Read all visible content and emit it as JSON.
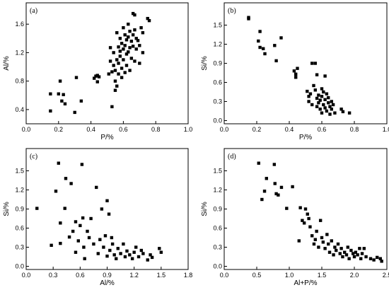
{
  "chart_data": [
    {
      "type": "scatter",
      "panel_label": "(a)",
      "xlabel": "P/%",
      "ylabel": "Al/%",
      "xlim": [
        0.0,
        1.0
      ],
      "ylim": [
        0.2,
        1.9
      ],
      "xticks": [
        0.0,
        0.2,
        0.4,
        0.6,
        0.8,
        1.0
      ],
      "yticks": [
        0.4,
        0.8,
        1.2,
        1.6
      ],
      "xtick_labels": [
        "0.0",
        "0.2",
        "0.4",
        "0.6",
        "0.8",
        "1.0"
      ],
      "ytick_labels": [
        "0.4",
        "0.8",
        "1.2",
        "1.6"
      ],
      "grid": false,
      "marker": "square",
      "series": [
        {
          "points": [
            [
              0.15,
              0.62
            ],
            [
              0.15,
              0.38
            ],
            [
              0.2,
              0.62
            ],
            [
              0.21,
              0.8
            ],
            [
              0.22,
              0.52
            ],
            [
              0.23,
              0.61
            ],
            [
              0.24,
              0.48
            ],
            [
              0.31,
              0.85
            ],
            [
              0.3,
              0.36
            ],
            [
              0.34,
              0.52
            ],
            [
              0.42,
              0.84
            ],
            [
              0.43,
              0.87
            ],
            [
              0.44,
              0.88
            ],
            [
              0.44,
              0.79
            ],
            [
              0.45,
              0.86
            ],
            [
              0.51,
              0.9
            ],
            [
              0.52,
              1.08
            ],
            [
              0.52,
              1.27
            ],
            [
              0.53,
              0.44
            ],
            [
              0.53,
              0.93
            ],
            [
              0.54,
              1.2
            ],
            [
              0.54,
              1.02
            ],
            [
              0.55,
              0.95
            ],
            [
              0.55,
              0.67
            ],
            [
              0.55,
              0.8
            ],
            [
              0.56,
              1.48
            ],
            [
              0.56,
              1.1
            ],
            [
              0.56,
              0.73
            ],
            [
              0.57,
              1.28
            ],
            [
              0.57,
              1.05
            ],
            [
              0.57,
              0.9
            ],
            [
              0.58,
              1.4
            ],
            [
              0.58,
              1.22
            ],
            [
              0.58,
              1.15
            ],
            [
              0.59,
              1.33
            ],
            [
              0.59,
              0.98
            ],
            [
              0.59,
              0.85
            ],
            [
              0.6,
              1.55
            ],
            [
              0.6,
              1.25
            ],
            [
              0.6,
              1.1
            ],
            [
              0.61,
              1.45
            ],
            [
              0.61,
              1.3
            ],
            [
              0.61,
              0.92
            ],
            [
              0.62,
              1.38
            ],
            [
              0.62,
              1.18
            ],
            [
              0.62,
              1.02
            ],
            [
              0.63,
              1.6
            ],
            [
              0.63,
              1.42
            ],
            [
              0.63,
              1.21
            ],
            [
              0.64,
              1.5
            ],
            [
              0.64,
              1.27
            ],
            [
              0.64,
              0.95
            ],
            [
              0.65,
              1.36
            ],
            [
              0.65,
              1.12
            ],
            [
              0.66,
              1.75
            ],
            [
              0.66,
              1.45
            ],
            [
              0.66,
              1.29
            ],
            [
              0.67,
              1.73
            ],
            [
              0.67,
              1.52
            ],
            [
              0.67,
              1.08
            ],
            [
              0.68,
              1.4
            ],
            [
              0.68,
              1.25
            ],
            [
              0.69,
              1.37
            ],
            [
              0.7,
              1.3
            ],
            [
              0.7,
              1.05
            ],
            [
              0.71,
              1.55
            ],
            [
              0.72,
              1.48
            ],
            [
              0.72,
              1.2
            ],
            [
              0.75,
              1.68
            ],
            [
              0.76,
              1.65
            ]
          ]
        }
      ]
    },
    {
      "type": "scatter",
      "panel_label": "(b)",
      "xlabel": "P/%",
      "ylabel": "Si/%",
      "xlim": [
        0.0,
        1.0
      ],
      "ylim": [
        -0.05,
        1.85
      ],
      "xticks": [
        0.0,
        0.2,
        0.4,
        0.6,
        0.8,
        1.0
      ],
      "yticks": [
        0.0,
        0.3,
        0.6,
        0.9,
        1.2,
        1.5
      ],
      "xtick_labels": [
        "0.0",
        "0.2",
        "0.4",
        "0.6",
        "0.8",
        "1.0"
      ],
      "ytick_labels": [
        "0.0",
        "0.3",
        "0.6",
        "0.9",
        "1.2",
        "1.5"
      ],
      "grid": false,
      "marker": "square",
      "series": [
        {
          "points": [
            [
              0.15,
              1.62
            ],
            [
              0.15,
              1.6
            ],
            [
              0.21,
              1.25
            ],
            [
              0.22,
              1.4
            ],
            [
              0.22,
              1.15
            ],
            [
              0.24,
              1.13
            ],
            [
              0.25,
              1.05
            ],
            [
              0.31,
              1.18
            ],
            [
              0.32,
              0.94
            ],
            [
              0.35,
              1.3
            ],
            [
              0.43,
              0.78
            ],
            [
              0.44,
              0.73
            ],
            [
              0.45,
              0.82
            ],
            [
              0.44,
              0.68
            ],
            [
              0.51,
              0.46
            ],
            [
              0.52,
              0.38
            ],
            [
              0.52,
              0.3
            ],
            [
              0.53,
              0.42
            ],
            [
              0.54,
              0.9
            ],
            [
              0.54,
              0.25
            ],
            [
              0.55,
              0.55
            ],
            [
              0.56,
              0.9
            ],
            [
              0.56,
              0.48
            ],
            [
              0.57,
              0.35
            ],
            [
              0.57,
              0.72
            ],
            [
              0.57,
              0.22
            ],
            [
              0.58,
              0.4
            ],
            [
              0.58,
              0.28
            ],
            [
              0.59,
              0.18
            ],
            [
              0.59,
              0.32
            ],
            [
              0.6,
              0.5
            ],
            [
              0.6,
              0.38
            ],
            [
              0.6,
              0.12
            ],
            [
              0.61,
              0.45
            ],
            [
              0.61,
              0.25
            ],
            [
              0.62,
              0.7
            ],
            [
              0.62,
              0.33
            ],
            [
              0.62,
              0.2
            ],
            [
              0.63,
              0.42
            ],
            [
              0.63,
              0.15
            ],
            [
              0.64,
              0.36
            ],
            [
              0.64,
              0.28
            ],
            [
              0.65,
              0.22
            ],
            [
              0.65,
              0.1
            ],
            [
              0.66,
              0.3
            ],
            [
              0.66,
              0.18
            ],
            [
              0.67,
              0.25
            ],
            [
              0.68,
              0.12
            ],
            [
              0.72,
              0.18
            ],
            [
              0.73,
              0.14
            ],
            [
              0.77,
              0.12
            ]
          ]
        }
      ]
    },
    {
      "type": "scatter",
      "panel_label": "(c)",
      "xlabel": "Al/%",
      "ylabel": "Si/%",
      "xlim": [
        0.0,
        1.8
      ],
      "ylim": [
        -0.05,
        1.85
      ],
      "xticks": [
        0.0,
        0.3,
        0.6,
        0.9,
        1.2,
        1.5,
        1.8
      ],
      "yticks": [
        0.0,
        0.3,
        0.6,
        0.9,
        1.2,
        1.5
      ],
      "xtick_labels": [
        "0.0",
        "0.3",
        "0.6",
        "0.9",
        "1.2",
        "1.5",
        "1.8"
      ],
      "ytick_labels": [
        "0.0",
        "0.3",
        "0.6",
        "0.9",
        "1.2",
        "1.5"
      ],
      "grid": false,
      "marker": "square",
      "series": [
        {
          "points": [
            [
              0.12,
              0.91
            ],
            [
              0.28,
              0.33
            ],
            [
              0.33,
              1.18
            ],
            [
              0.36,
              1.62
            ],
            [
              0.38,
              0.36
            ],
            [
              0.38,
              0.68
            ],
            [
              0.43,
              0.91
            ],
            [
              0.44,
              1.38
            ],
            [
              0.48,
              0.46
            ],
            [
              0.5,
              1.3
            ],
            [
              0.52,
              0.55
            ],
            [
              0.55,
              0.22
            ],
            [
              0.55,
              0.7
            ],
            [
              0.58,
              0.4
            ],
            [
              0.6,
              0.64
            ],
            [
              0.62,
              1.6
            ],
            [
              0.63,
              0.76
            ],
            [
              0.64,
              0.3
            ],
            [
              0.65,
              0.12
            ],
            [
              0.68,
              0.55
            ],
            [
              0.7,
              0.45
            ],
            [
              0.72,
              0.75
            ],
            [
              0.75,
              0.35
            ],
            [
              0.78,
              1.24
            ],
            [
              0.8,
              0.2
            ],
            [
              0.82,
              0.42
            ],
            [
              0.84,
              0.9
            ],
            [
              0.86,
              0.3
            ],
            [
              0.88,
              0.48
            ],
            [
              0.9,
              0.16
            ],
            [
              0.9,
              1.03
            ],
            [
              0.92,
              0.82
            ],
            [
              0.93,
              0.25
            ],
            [
              0.95,
              0.45
            ],
            [
              0.96,
              0.35
            ],
            [
              0.98,
              0.18
            ],
            [
              1.0,
              0.12
            ],
            [
              1.02,
              0.28
            ],
            [
              1.05,
              0.2
            ],
            [
              1.08,
              0.35
            ],
            [
              1.1,
              0.15
            ],
            [
              1.12,
              0.24
            ],
            [
              1.15,
              0.18
            ],
            [
              1.18,
              0.12
            ],
            [
              1.2,
              0.22
            ],
            [
              1.22,
              0.3
            ],
            [
              1.25,
              0.15
            ],
            [
              1.28,
              0.25
            ],
            [
              1.3,
              0.2
            ],
            [
              1.35,
              0.1
            ],
            [
              1.38,
              0.18
            ],
            [
              1.4,
              0.14
            ],
            [
              1.48,
              0.28
            ],
            [
              1.5,
              0.22
            ]
          ]
        }
      ]
    },
    {
      "type": "scatter",
      "panel_label": "(d)",
      "xlabel": "Al+P/%",
      "ylabel": "Si/%",
      "xlim": [
        0.0,
        2.5
      ],
      "ylim": [
        -0.05,
        1.85
      ],
      "xticks": [
        0.0,
        0.5,
        1.0,
        1.5,
        2.0,
        2.5
      ],
      "yticks": [
        0.0,
        0.3,
        0.6,
        0.9,
        1.2,
        1.5
      ],
      "xtick_labels": [
        "0.0",
        "0.5",
        "1.0",
        "1.5",
        "2.0",
        "2.5"
      ],
      "ytick_labels": [
        "0.0",
        "0.3",
        "0.6",
        "0.9",
        "1.2",
        "1.5"
      ],
      "grid": false,
      "marker": "square",
      "series": [
        {
          "points": [
            [
              0.53,
              1.62
            ],
            [
              0.58,
              1.05
            ],
            [
              0.62,
              1.18
            ],
            [
              0.65,
              1.38
            ],
            [
              0.77,
              1.6
            ],
            [
              0.78,
              1.3
            ],
            [
              0.8,
              1.14
            ],
            [
              0.83,
              1.12
            ],
            [
              0.88,
              1.24
            ],
            [
              0.96,
              0.91
            ],
            [
              1.05,
              1.25
            ],
            [
              1.15,
              0.4
            ],
            [
              1.17,
              0.92
            ],
            [
              1.2,
              0.72
            ],
            [
              1.23,
              0.68
            ],
            [
              1.25,
              0.9
            ],
            [
              1.28,
              0.82
            ],
            [
              1.3,
              0.75
            ],
            [
              1.32,
              0.62
            ],
            [
              1.35,
              0.48
            ],
            [
              1.38,
              0.35
            ],
            [
              1.4,
              0.42
            ],
            [
              1.42,
              0.55
            ],
            [
              1.45,
              0.3
            ],
            [
              1.48,
              0.72
            ],
            [
              1.5,
              0.45
            ],
            [
              1.52,
              0.38
            ],
            [
              1.55,
              0.28
            ],
            [
              1.58,
              0.5
            ],
            [
              1.6,
              0.35
            ],
            [
              1.62,
              0.22
            ],
            [
              1.65,
              0.4
            ],
            [
              1.68,
              0.18
            ],
            [
              1.7,
              0.3
            ],
            [
              1.72,
              0.25
            ],
            [
              1.75,
              0.35
            ],
            [
              1.78,
              0.2
            ],
            [
              1.8,
              0.28
            ],
            [
              1.82,
              0.15
            ],
            [
              1.85,
              0.22
            ],
            [
              1.88,
              0.18
            ],
            [
              1.9,
              0.3
            ],
            [
              1.92,
              0.12
            ],
            [
              1.95,
              0.25
            ],
            [
              1.98,
              0.2
            ],
            [
              2.0,
              0.15
            ],
            [
              2.02,
              0.22
            ],
            [
              2.05,
              0.18
            ],
            [
              2.08,
              0.28
            ],
            [
              2.1,
              0.12
            ],
            [
              2.12,
              0.2
            ],
            [
              2.15,
              0.28
            ],
            [
              2.18,
              0.15
            ],
            [
              2.25,
              0.12
            ],
            [
              2.3,
              0.1
            ],
            [
              2.35,
              0.14
            ],
            [
              2.4,
              0.12
            ],
            [
              2.42,
              0.08
            ]
          ]
        }
      ]
    }
  ]
}
